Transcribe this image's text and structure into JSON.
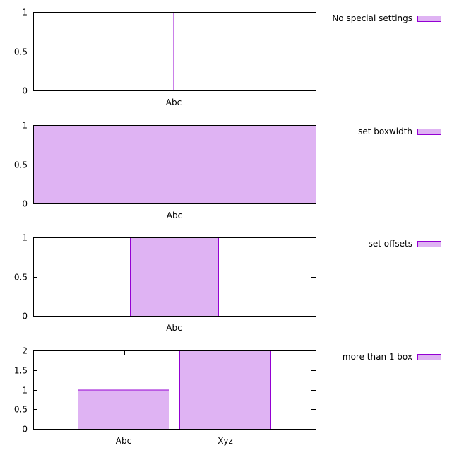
{
  "chart_data": [
    {
      "type": "bar",
      "categories": [
        "Abc"
      ],
      "values": [
        1
      ],
      "bar_width": "0 (line)",
      "ylim": [
        0,
        1
      ],
      "yticks": [
        "0",
        "0.5",
        "1"
      ],
      "legend": "No special settings",
      "legend_position": "right",
      "color": "#dfb3f3",
      "edge_color": "#9400d3"
    },
    {
      "type": "bar",
      "categories": [
        "Abc"
      ],
      "values": [
        1
      ],
      "bar_width": "full",
      "ylim": [
        0,
        1
      ],
      "yticks": [
        "0",
        "0.5",
        "1"
      ],
      "legend": "set boxwidth",
      "legend_position": "right",
      "color": "#dfb3f3",
      "edge_color": "#9400d3"
    },
    {
      "type": "bar",
      "categories": [
        "Abc"
      ],
      "values": [
        1
      ],
      "bar_width": "0.5",
      "ylim": [
        0,
        1
      ],
      "yticks": [
        "0",
        "0.5",
        "1"
      ],
      "legend": "set offsets",
      "legend_position": "right",
      "color": "#dfb3f3",
      "edge_color": "#9400d3"
    },
    {
      "type": "bar",
      "categories": [
        "Abc",
        "Xyz"
      ],
      "values": [
        1,
        2
      ],
      "ylim": [
        0,
        2
      ],
      "yticks": [
        "0",
        "0.5",
        "1",
        "1.5",
        "2"
      ],
      "legend": "more than 1 box",
      "legend_position": "right",
      "color": "#dfb3f3",
      "edge_color": "#9400d3"
    }
  ]
}
